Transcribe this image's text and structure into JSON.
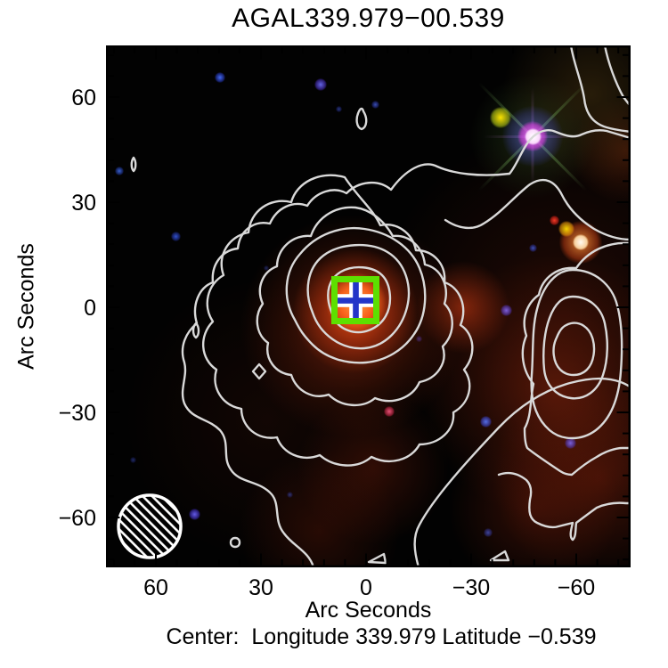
{
  "title": "AGAL339.979−00.539",
  "axes": {
    "x_label": "Arc Seconds",
    "y_label": "Arc Seconds",
    "x_ticks": [
      "60",
      "30",
      "0",
      "−30",
      "−60"
    ],
    "y_ticks": [
      "60",
      "30",
      "0",
      "−30",
      "−60"
    ]
  },
  "caption": "Center:  Longitude 339.979 Latitude −0.539",
  "colors": {
    "marker_square": "#5de000",
    "marker_cross": "#2335c8",
    "contour": "#d9d9d9",
    "background": "#020202"
  },
  "chart_data": {
    "type": "heatmap",
    "title": "AGAL339.979−00.539",
    "xlabel": "Arc Seconds",
    "ylabel": "Arc Seconds",
    "xlim": [
      75,
      -75
    ],
    "ylim": [
      -75,
      75
    ],
    "x_tick_values": [
      60,
      30,
      0,
      -30,
      -60
    ],
    "y_tick_values": [
      60,
      30,
      0,
      -30,
      -60
    ],
    "grid": false,
    "description": "Three-color infrared image of dense clump AGAL339.979−00.539 overlaid with grey submillimeter dust-continuum contours; green square with blue cross marks the clump peak; hatched circle shows the beam.",
    "center": {
      "longitude": 339.979,
      "latitude": -0.539
    },
    "marker": {
      "x_arcsec": 3,
      "y_arcsec": 2,
      "size_arcsec": 12,
      "shape": "square-plus-cross"
    },
    "beam": {
      "x_arcsec": 62,
      "y_arcsec": -62,
      "diameter_arcsec": 19
    },
    "contour_peaks": [
      {
        "x_arcsec": 3,
        "y_arcsec": 2,
        "levels_visible": 6
      },
      {
        "x_arcsec": -59,
        "y_arcsec": -12,
        "levels_visible": 4
      }
    ],
    "bright_sources": [
      {
        "x_arcsec": -47,
        "y_arcsec": 49,
        "color": "white-magenta star"
      },
      {
        "x_arcsec": -38,
        "y_arcsec": 54,
        "color": "yellow"
      },
      {
        "x_arcsec": -61,
        "y_arcsec": 19,
        "color": "white-orange"
      },
      {
        "x_arcsec": -57,
        "y_arcsec": 22,
        "color": "yellow"
      },
      {
        "x_arcsec": -54,
        "y_arcsec": 25,
        "color": "red"
      }
    ]
  }
}
